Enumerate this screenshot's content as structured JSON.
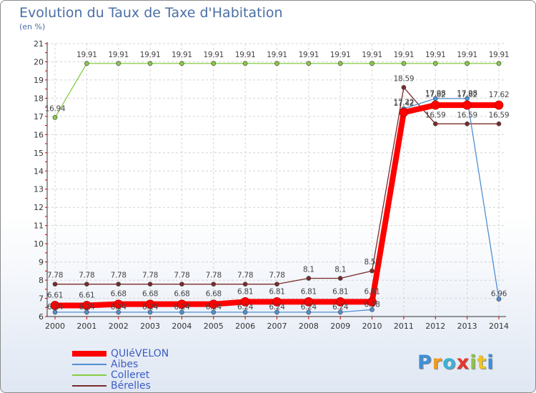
{
  "title": "Evolution du Taux de Taxe d'Habitation",
  "subtitle": "(en %)",
  "logo_text": "Proxiti",
  "chart_data": {
    "type": "line",
    "title": "Evolution du Taux de Taxe d'Habitation",
    "ylabel": "(en %)",
    "xlabel": "",
    "ylim": [
      6,
      21
    ],
    "yticks": [
      "6",
      "7",
      "8",
      "9",
      "10",
      "11",
      "12",
      "13",
      "14",
      "15",
      "16",
      "17",
      "18",
      "19",
      "20",
      "21"
    ],
    "categories": [
      "2000",
      "2001",
      "2002",
      "2003",
      "2004",
      "2005",
      "2006",
      "2007",
      "2008",
      "2009",
      "2010",
      "2011",
      "2012",
      "2013",
      "2014"
    ],
    "grid": true,
    "legend": "bottom-left",
    "series": [
      {
        "name": "QUIéVELON",
        "color": "#ff0000",
        "values": [
          6.61,
          6.61,
          6.68,
          6.68,
          6.68,
          6.68,
          6.81,
          6.81,
          6.81,
          6.81,
          6.81,
          17.22,
          17.62,
          17.62,
          17.62
        ],
        "labels": [
          "6.61",
          "6.61",
          "6.68",
          "6.68",
          "6.68",
          "6.68",
          "6.81",
          "6.81",
          "6.81",
          "6.81",
          "6.81",
          "17.22",
          "17.62",
          "17.62",
          "17.62"
        ]
      },
      {
        "name": "Aibes",
        "color": "#4f8fd1",
        "values": [
          6.24,
          6.24,
          6.24,
          6.24,
          6.24,
          6.24,
          6.24,
          6.24,
          6.24,
          6.24,
          6.38,
          17.42,
          17.98,
          17.98,
          6.96
        ],
        "labels": [
          "6.24",
          "6.24",
          "6.24",
          "6.24",
          "6.24",
          "6.24",
          "6.24",
          "6.24",
          "6.24",
          "6.24",
          "6.38",
          "17.42",
          "17.98",
          "17.98",
          "6.96"
        ]
      },
      {
        "name": "Colleret",
        "color": "#88cc44",
        "values": [
          16.94,
          19.91,
          19.91,
          19.91,
          19.91,
          19.91,
          19.91,
          19.91,
          19.91,
          19.91,
          19.91,
          19.91,
          19.91,
          19.91,
          19.91
        ],
        "labels": [
          "16.94",
          "19.91",
          "19.91",
          "19.91",
          "19.91",
          "19.91",
          "19.91",
          "19.91",
          "19.91",
          "19.91",
          "19.91",
          "19.91",
          "19.91",
          "19.91",
          "19.91"
        ]
      },
      {
        "name": "Bérelles",
        "color": "#7a2a2a",
        "values": [
          7.78,
          7.78,
          7.78,
          7.78,
          7.78,
          7.78,
          7.78,
          7.78,
          8.1,
          8.1,
          8.51,
          18.59,
          16.59,
          16.59,
          16.59
        ],
        "labels": [
          "7.78",
          "7.78",
          "7.78",
          "7.78",
          "7.78",
          "7.78",
          "7.78",
          "7.78",
          "8.1",
          "8.1",
          "8.51",
          "18.59",
          "16.59",
          "16.59",
          "16.59"
        ]
      }
    ]
  }
}
